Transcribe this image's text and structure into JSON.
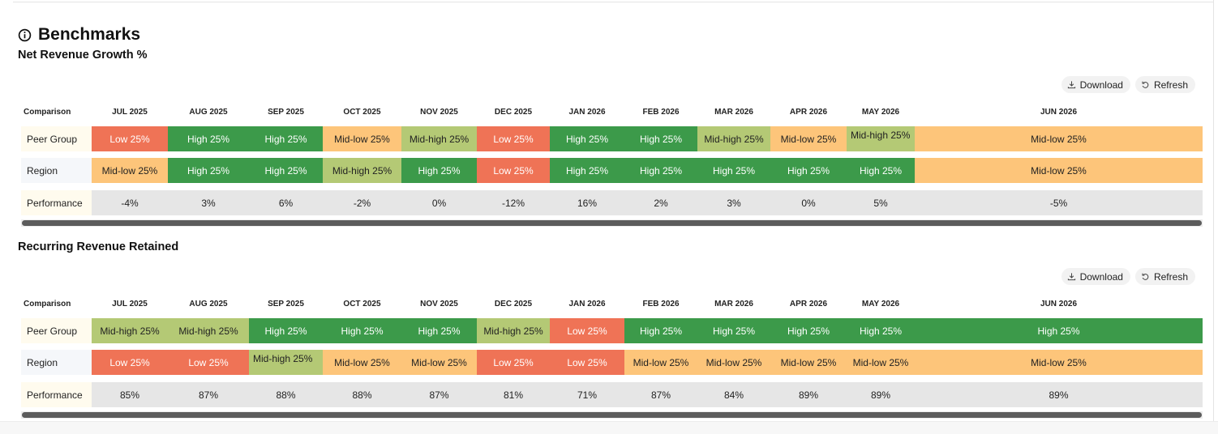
{
  "page": {
    "title": "Benchmarks",
    "icon": "info-icon"
  },
  "actions": {
    "download_label": "Download",
    "refresh_label": "Refresh"
  },
  "colors": {
    "low": "#ef7356",
    "high": "#3c9a4a",
    "mid_low": "#fdc57a",
    "mid_high": "#b4c975",
    "performance_bg": "#e6e6e6"
  },
  "columns": [
    "Comparison",
    "JUL 2025",
    "AUG 2025",
    "SEP 2025",
    "OCT 2025",
    "NOV 2025",
    "DEC 2025",
    "JAN 2026",
    "FEB 2026",
    "MAR 2026",
    "APR 2026",
    "MAY 2026",
    "JUN 2026"
  ],
  "sections": [
    {
      "title": "Net Revenue Growth %",
      "rows": [
        {
          "label": "Peer Group",
          "cells": [
            "Low 25%",
            "High 25%",
            "High 25%",
            "Mid-low 25%",
            "Mid-high 25%",
            "Low 25%",
            "High 25%",
            "High 25%",
            "Mid-high 25%",
            "Mid-low 25%",
            "Mid-high 25%",
            "Mid-low 25%"
          ]
        },
        {
          "label": "Region",
          "cells": [
            "Mid-low 25%",
            "High 25%",
            "High 25%",
            "Mid-high 25%",
            "High 25%",
            "Low 25%",
            "High 25%",
            "High 25%",
            "High 25%",
            "High 25%",
            "High 25%",
            "Mid-low 25%"
          ]
        },
        {
          "label": "Performance",
          "cells": [
            "-4%",
            "3%",
            "6%",
            "-2%",
            "0%",
            "-12%",
            "16%",
            "2%",
            "3%",
            "0%",
            "5%",
            "-5%"
          ]
        }
      ]
    },
    {
      "title": "Recurring Revenue Retained",
      "rows": [
        {
          "label": "Peer Group",
          "cells": [
            "Mid-high 25%",
            "Mid-high 25%",
            "High 25%",
            "High 25%",
            "High 25%",
            "Mid-high 25%",
            "Low 25%",
            "High 25%",
            "High 25%",
            "High 25%",
            "High 25%",
            "High 25%"
          ]
        },
        {
          "label": "Region",
          "cells": [
            "Low 25%",
            "Low 25%",
            "Mid-high 25%",
            "Mid-low 25%",
            "Mid-low 25%",
            "Low 25%",
            "Low 25%",
            "Mid-low 25%",
            "Mid-low 25%",
            "Mid-low 25%",
            "Mid-low 25%",
            "Mid-low 25%"
          ]
        },
        {
          "label": "Performance",
          "cells": [
            "85%",
            "87%",
            "88%",
            "88%",
            "87%",
            "81%",
            "71%",
            "87%",
            "84%",
            "89%",
            "89%",
            "89%"
          ]
        }
      ]
    }
  ]
}
